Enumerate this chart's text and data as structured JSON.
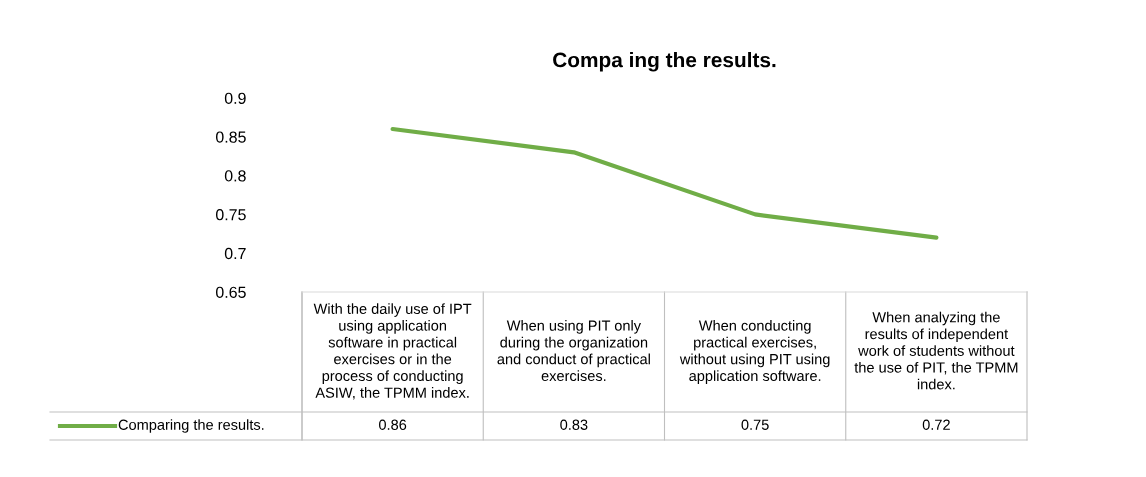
{
  "chart_data": {
    "type": "line",
    "title": "Compa ing the results.",
    "categories": [
      "With the daily use of IPT using application software in practical exercises or in the process of conducting ASIW, the TPMM index.",
      "When using PIT only during the organization and conduct of practical exercises.",
      "When conducting practical exercises, without using PIT using application software.",
      "When analyzing the results of independent work of students without the use of PIT, the TPMM index."
    ],
    "series": [
      {
        "name": "Comparing the results.",
        "color": "#70ad47",
        "values": [
          0.86,
          0.83,
          0.75,
          0.72
        ]
      }
    ],
    "ylim": [
      0.65,
      0.9
    ],
    "yticks": [
      0.65,
      0.7,
      0.75,
      0.8,
      0.85,
      0.9
    ],
    "grid": false,
    "legend": "bottom",
    "data_labels": true,
    "marker": "none",
    "line_style": "solid"
  }
}
